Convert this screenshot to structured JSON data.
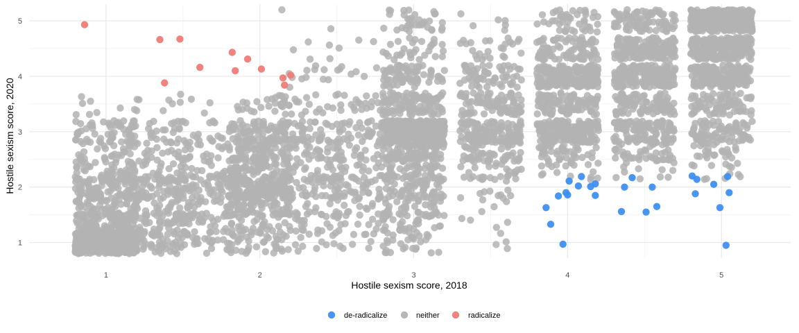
{
  "chart_data": {
    "type": "scatter",
    "title": "",
    "xlabel": "Hostile sexism score, 2018",
    "ylabel": "Hostile sexism score, 2020",
    "xlim": [
      0.5,
      5.45
    ],
    "ylim": [
      0.72,
      5.3
    ],
    "x_ticks": [
      1,
      2,
      3,
      4,
      5
    ],
    "y_ticks": [
      1,
      2,
      3,
      4,
      5
    ],
    "grid": true,
    "legend_position": "bottom",
    "colors": {
      "de-radicalize": "#3f8ff2",
      "neither": "#b3b3b3",
      "radicalize": "#f07c78"
    },
    "jitter": {
      "x_levels": [
        1,
        1.333,
        1.667,
        2,
        2.333,
        2.667,
        3,
        3.5,
        4,
        4.5,
        5
      ],
      "y_levels": [
        1,
        1.333,
        1.667,
        2,
        2.333,
        2.667,
        3,
        3.5,
        4,
        4.5,
        5
      ],
      "width": 0.2,
      "height": 0.2
    },
    "series": [
      {
        "name": "radicalize",
        "points": [
          [
            0.86,
            4.93
          ],
          [
            1.35,
            4.66
          ],
          [
            1.38,
            3.88
          ],
          [
            1.48,
            4.67
          ],
          [
            1.61,
            4.16
          ],
          [
            1.82,
            4.43
          ],
          [
            1.84,
            4.1
          ],
          [
            1.92,
            4.31
          ],
          [
            2.01,
            4.13
          ],
          [
            2.15,
            3.97
          ],
          [
            2.16,
            3.84
          ],
          [
            2.2,
            4.02
          ]
        ]
      },
      {
        "name": "de-radicalize",
        "points": [
          [
            3.86,
            1.63
          ],
          [
            3.89,
            1.33
          ],
          [
            3.94,
            1.84
          ],
          [
            3.97,
            0.97
          ],
          [
            3.99,
            1.9
          ],
          [
            4.0,
            1.86
          ],
          [
            4.01,
            2.11
          ],
          [
            4.07,
            2.02
          ],
          [
            4.09,
            2.19
          ],
          [
            4.15,
            2.01
          ],
          [
            4.18,
            1.85
          ],
          [
            4.18,
            2.06
          ],
          [
            4.35,
            1.56
          ],
          [
            4.37,
            2.0
          ],
          [
            4.42,
            2.17
          ],
          [
            4.51,
            1.55
          ],
          [
            4.55,
            2.0
          ],
          [
            4.58,
            1.65
          ],
          [
            4.81,
            2.2
          ],
          [
            4.83,
            1.88
          ],
          [
            4.84,
            2.14
          ],
          [
            4.95,
            2.05
          ],
          [
            4.99,
            1.63
          ],
          [
            5.03,
            0.95
          ],
          [
            5.04,
            2.19
          ],
          [
            5.05,
            1.9
          ]
        ]
      },
      {
        "name": "neither",
        "cells": [
          [
            1,
            1,
            420
          ],
          [
            1,
            1.333,
            110
          ],
          [
            1,
            1.667,
            70
          ],
          [
            1,
            2,
            80
          ],
          [
            1,
            2.333,
            40
          ],
          [
            1,
            2.667,
            30
          ],
          [
            1,
            3,
            45
          ],
          [
            1,
            3.5,
            8
          ],
          [
            1.333,
            1,
            50
          ],
          [
            1.333,
            1.333,
            50
          ],
          [
            1.333,
            1.667,
            45
          ],
          [
            1.333,
            2,
            60
          ],
          [
            1.333,
            2.333,
            30
          ],
          [
            1.333,
            2.667,
            25
          ],
          [
            1.333,
            3,
            28
          ],
          [
            1.333,
            3.5,
            6
          ],
          [
            1.667,
            1,
            30
          ],
          [
            1.667,
            1.333,
            35
          ],
          [
            1.667,
            1.667,
            30
          ],
          [
            1.667,
            2,
            50
          ],
          [
            1.667,
            2.333,
            25
          ],
          [
            1.667,
            2.667,
            20
          ],
          [
            1.667,
            3,
            25
          ],
          [
            1.667,
            3.5,
            5
          ],
          [
            2,
            1,
            40
          ],
          [
            2,
            1.333,
            30
          ],
          [
            2,
            1.667,
            60
          ],
          [
            2,
            2,
            130
          ],
          [
            2,
            2.333,
            70
          ],
          [
            2,
            2.667,
            80
          ],
          [
            2,
            3,
            70
          ],
          [
            2,
            3.5,
            20
          ],
          [
            2.333,
            1,
            10
          ],
          [
            2.333,
            1.333,
            20
          ],
          [
            2.333,
            1.667,
            25
          ],
          [
            2.333,
            2,
            40
          ],
          [
            2.333,
            2.333,
            30
          ],
          [
            2.333,
            2.667,
            35
          ],
          [
            2.333,
            3,
            40
          ],
          [
            2.333,
            3.5,
            25
          ],
          [
            2.333,
            4,
            12
          ],
          [
            2.333,
            4.5,
            5
          ],
          [
            2.333,
            5,
            2
          ],
          [
            2.667,
            1,
            8
          ],
          [
            2.667,
            1.333,
            18
          ],
          [
            2.667,
            1.667,
            22
          ],
          [
            2.667,
            2,
            35
          ],
          [
            2.667,
            2.333,
            28
          ],
          [
            2.667,
            2.667,
            30
          ],
          [
            2.667,
            3,
            35
          ],
          [
            2.667,
            3.5,
            22
          ],
          [
            2.667,
            4,
            10
          ],
          [
            2.667,
            4.5,
            3
          ],
          [
            3,
            1,
            25
          ],
          [
            3,
            1.333,
            30
          ],
          [
            3,
            1.667,
            40
          ],
          [
            3,
            2,
            60
          ],
          [
            3,
            2.333,
            55
          ],
          [
            3,
            2.667,
            90
          ],
          [
            3,
            3,
            300
          ],
          [
            3,
            3.5,
            110
          ],
          [
            3,
            4,
            70
          ],
          [
            3,
            4.5,
            30
          ],
          [
            3,
            5,
            35
          ],
          [
            3.5,
            1.333,
            4
          ],
          [
            3.5,
            1.667,
            6
          ],
          [
            3.5,
            2,
            12
          ],
          [
            3.5,
            2.333,
            35
          ],
          [
            3.5,
            2.667,
            50
          ],
          [
            3.5,
            3,
            110
          ],
          [
            3.5,
            3.5,
            90
          ],
          [
            3.5,
            4,
            60
          ],
          [
            3.5,
            4.5,
            25
          ],
          [
            3.5,
            5,
            6
          ],
          [
            3.5,
            1,
            4
          ],
          [
            4,
            2.333,
            20
          ],
          [
            4,
            2.667,
            50
          ],
          [
            4,
            3,
            160
          ],
          [
            4,
            3.5,
            100
          ],
          [
            4,
            4,
            190
          ],
          [
            4,
            4.5,
            90
          ],
          [
            4,
            5,
            45
          ],
          [
            4.5,
            2.333,
            18
          ],
          [
            4.5,
            2.667,
            40
          ],
          [
            4.5,
            3,
            110
          ],
          [
            4.5,
            3.5,
            90
          ],
          [
            4.5,
            4,
            190
          ],
          [
            4.5,
            4.5,
            150
          ],
          [
            4.5,
            5,
            90
          ],
          [
            5,
            2.333,
            14
          ],
          [
            5,
            2.667,
            30
          ],
          [
            5,
            3,
            80
          ],
          [
            5,
            3.5,
            80
          ],
          [
            5,
            4,
            150
          ],
          [
            5,
            4.5,
            260
          ],
          [
            5,
            5,
            420
          ]
        ]
      }
    ],
    "legend": [
      {
        "label": "de-radicalize",
        "key": "de-radicalize"
      },
      {
        "label": "neither",
        "key": "neither"
      },
      {
        "label": "radicalize",
        "key": "radicalize"
      }
    ]
  }
}
